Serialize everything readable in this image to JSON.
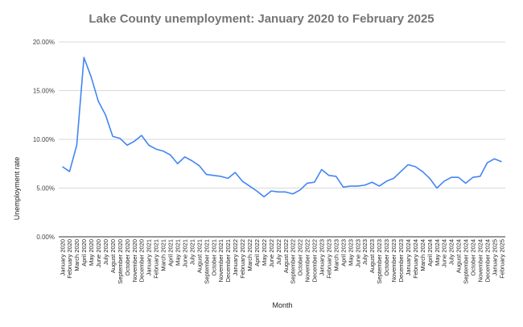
{
  "chart_data": {
    "type": "line",
    "title": "Lake County unemployment: January 2020 to February 2025",
    "xlabel": "Month",
    "ylabel": "Unemployment rate",
    "ylim": [
      0,
      20
    ],
    "y_ticks": [
      "0.00%",
      "5.00%",
      "10.00%",
      "15.00%",
      "20.00%"
    ],
    "grid": true,
    "line_color": "#4285f4",
    "categories": [
      "January 2020",
      "February 2020",
      "March 2020",
      "April 2020",
      "May 2020",
      "June 2020",
      "July 2020",
      "August 2020",
      "September 2020",
      "October 2020",
      "November 2020",
      "December 2020",
      "January 2021",
      "February 2021",
      "March 2021",
      "April 2021",
      "May 2021",
      "June 2021",
      "July 2021",
      "August 2021",
      "September 2021",
      "October 2021",
      "November 2021",
      "December 2021",
      "January 2022",
      "February 2022",
      "March 2022",
      "April 2022",
      "May 2022",
      "June 2022",
      "July 2022",
      "August 2022",
      "September 2022",
      "October 2022",
      "November 2022",
      "December 2022",
      "January 2023",
      "February 2023",
      "March 2023",
      "April 2023",
      "May 2023",
      "June 2023",
      "July 2023",
      "August 2023",
      "September 2023",
      "October 2023",
      "November 2023",
      "December 2023",
      "January 2024",
      "February 2024",
      "March 2024",
      "April 2024",
      "May 2024",
      "June 2024",
      "July 2024",
      "August 2024",
      "September 2024",
      "October 2024",
      "November 2024",
      "December 2024",
      "January 2025",
      "February 2025"
    ],
    "values": [
      7.2,
      6.7,
      9.4,
      18.4,
      16.4,
      13.9,
      12.5,
      10.3,
      10.1,
      9.4,
      9.8,
      10.4,
      9.4,
      9.0,
      8.8,
      8.4,
      7.5,
      8.2,
      7.8,
      7.3,
      6.4,
      6.3,
      6.2,
      6.0,
      6.6,
      5.7,
      5.2,
      4.7,
      4.1,
      4.7,
      4.6,
      4.6,
      4.4,
      4.8,
      5.5,
      5.6,
      6.9,
      6.3,
      6.2,
      5.1,
      5.2,
      5.2,
      5.3,
      5.6,
      5.2,
      5.7,
      6.0,
      6.7,
      7.4,
      7.2,
      6.7,
      6.0,
      5.0,
      5.7,
      6.1,
      6.1,
      5.5,
      6.1,
      6.2,
      7.6,
      8.0,
      7.7
    ]
  }
}
